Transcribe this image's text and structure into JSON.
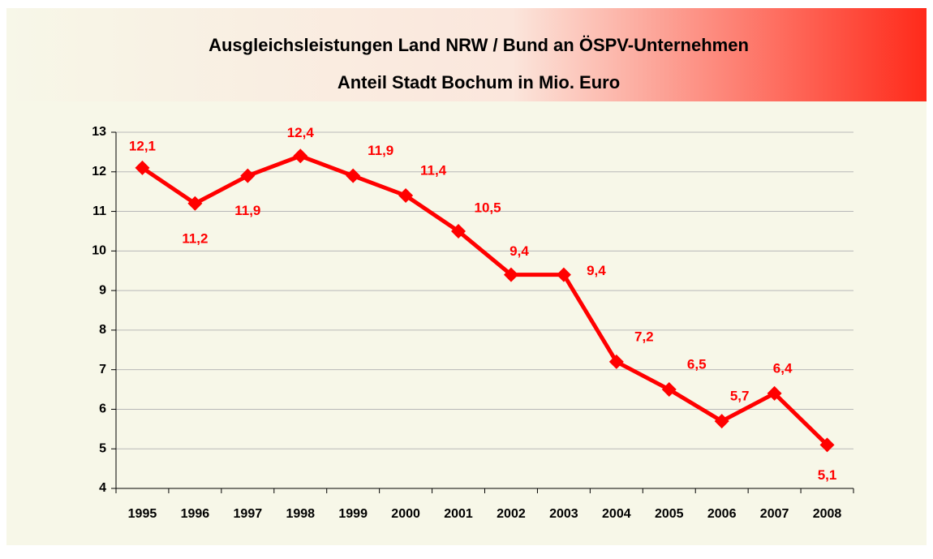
{
  "chart_data": {
    "type": "line",
    "title": "Ausgleichsleistungen Land NRW / Bund an ÖSPV-Unternehmen",
    "subtitle": "Anteil Stadt Bochum in Mio. Euro",
    "categories": [
      "1995",
      "1996",
      "1997",
      "1998",
      "1999",
      "2000",
      "2001",
      "2002",
      "2003",
      "2004",
      "2005",
      "2006",
      "2007",
      "2008"
    ],
    "values": [
      12.1,
      11.2,
      11.9,
      12.4,
      11.9,
      11.4,
      10.5,
      9.4,
      9.4,
      7.2,
      6.5,
      5.7,
      6.4,
      5.1
    ],
    "value_labels": [
      "12,1",
      "11,2",
      "11,9",
      "12,4",
      "11,9",
      "11,4",
      "10,5",
      "9,4",
      "9,4",
      "7,2",
      "6,5",
      "5,7",
      "6,4",
      "5,1"
    ],
    "color": "#ff0000",
    "ylim": [
      4,
      13
    ],
    "yticks": [
      4,
      5,
      6,
      7,
      8,
      9,
      10,
      11,
      12,
      13
    ],
    "grid": true
  }
}
